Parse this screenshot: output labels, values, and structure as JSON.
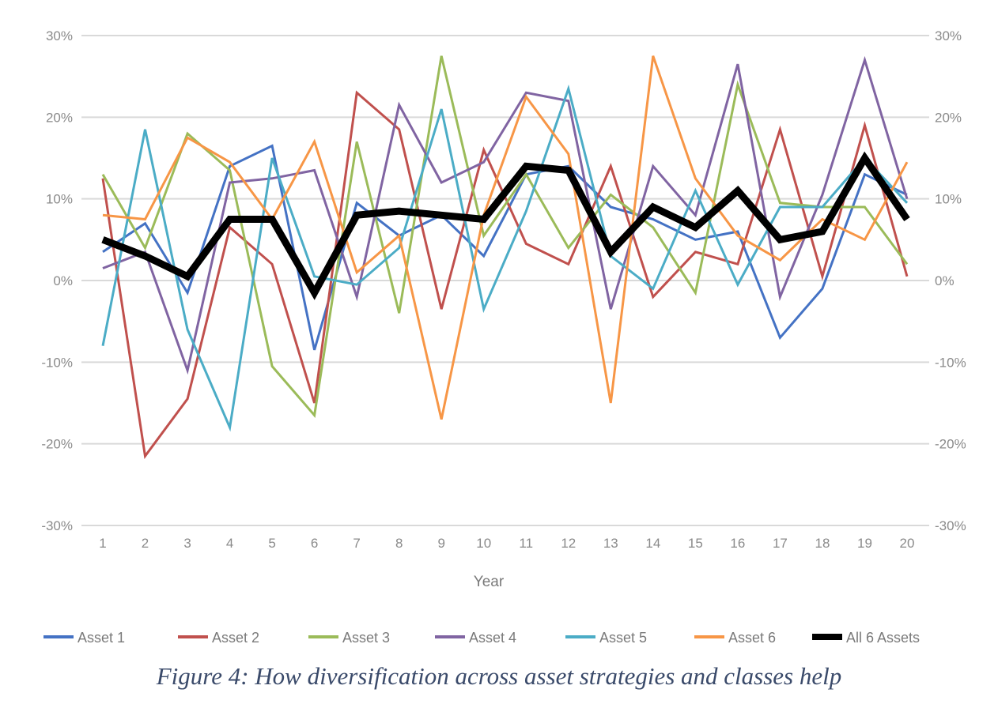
{
  "caption": "Figure 4: How diversification across asset strategies and classes help",
  "chart_data": {
    "type": "line",
    "xlabel": "Year",
    "ylabel": "",
    "x": [
      1,
      2,
      3,
      4,
      5,
      6,
      7,
      8,
      9,
      10,
      11,
      12,
      13,
      14,
      15,
      16,
      17,
      18,
      19,
      20
    ],
    "ylim": [
      -30,
      30
    ],
    "yticks": [
      -30,
      -20,
      -10,
      0,
      10,
      20,
      30
    ],
    "ytick_labels": [
      "-30%",
      "-20%",
      "-10%",
      "0%",
      "10%",
      "20%",
      "30%"
    ],
    "secondary_y_axis": true,
    "grid": true,
    "legend_position": "bottom",
    "series": [
      {
        "name": "Asset 1",
        "color": "#4472c4",
        "values": [
          3.5,
          7,
          -1.5,
          14,
          16.5,
          -8.5,
          9.5,
          5.5,
          8,
          3,
          13,
          14,
          9,
          7.5,
          5,
          6,
          -7,
          -1,
          13,
          10.5
        ]
      },
      {
        "name": "Asset 2",
        "color": "#c0504d",
        "values": [
          12.5,
          -21.5,
          -14.5,
          6.5,
          2,
          -15,
          23,
          18.5,
          -3.5,
          16,
          4.5,
          2,
          14,
          -2,
          3.5,
          2,
          18.5,
          0.5,
          19,
          0.5
        ]
      },
      {
        "name": "Asset 3",
        "color": "#9bbb59",
        "values": [
          13,
          4,
          18,
          13.5,
          -10.5,
          -16.5,
          17,
          -4,
          27.5,
          5.5,
          13,
          4,
          10.5,
          6.5,
          -1.5,
          24,
          9.5,
          9,
          9,
          2
        ]
      },
      {
        "name": "Asset 4",
        "color": "#8064a2",
        "values": [
          1.5,
          3.5,
          -11,
          12,
          12.5,
          13.5,
          -2,
          21.5,
          12,
          14.5,
          23,
          22,
          -3.5,
          14,
          8,
          26.5,
          -2,
          10.5,
          27,
          10
        ]
      },
      {
        "name": "Asset 5",
        "color": "#4bacc6",
        "values": [
          -8,
          18.5,
          -6,
          -18,
          15,
          0.5,
          -0.5,
          4,
          21,
          -3.5,
          8.5,
          23.5,
          3,
          -1,
          11,
          -0.5,
          9,
          9,
          15,
          9.5
        ]
      },
      {
        "name": "Asset 6",
        "color": "#f79646",
        "values": [
          8,
          7.5,
          17.5,
          14.5,
          7.5,
          17,
          1,
          5.5,
          -17,
          8,
          22.5,
          15.5,
          -15,
          27.5,
          12.5,
          5.5,
          2.5,
          7.5,
          5,
          14.5
        ]
      },
      {
        "name": "All 6 Assets",
        "color": "#000000",
        "values": [
          5,
          3,
          0.5,
          7.5,
          7.5,
          -1.5,
          8,
          8.5,
          8,
          7.5,
          14,
          13.5,
          3.5,
          9,
          6.5,
          11,
          5,
          6,
          15,
          7.5
        ]
      }
    ]
  }
}
